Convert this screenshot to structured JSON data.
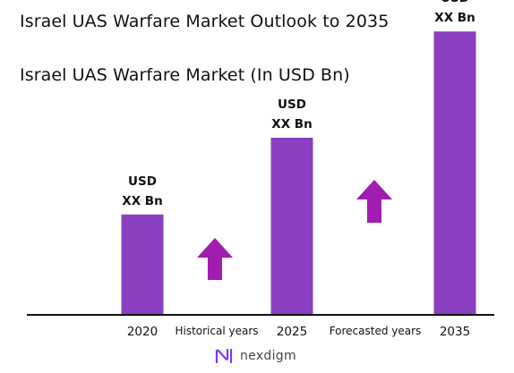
{
  "header": {
    "title": "Israel UAS Warfare Market Outlook to 2035",
    "subtitle": "Israel UAS Warfare Market (In USD Bn)"
  },
  "chart_data": {
    "type": "bar",
    "categories": [
      "2020",
      "2025",
      "2035"
    ],
    "values": [
      3.4,
      6.0,
      9.6
    ],
    "data_labels": [
      {
        "line1": "USD",
        "line2": "XX Bn"
      },
      {
        "line1": "USD",
        "line2": "XX Bn"
      },
      {
        "line1": "USD",
        "line2": "XX Bn"
      }
    ],
    "ylim": [
      0,
      10
    ],
    "grid": false,
    "legend": "none",
    "annotations": [
      "Historical years",
      "Forecasted years"
    ],
    "bar_color": "#8a3fc0",
    "arrow_color": "#a21caf"
  },
  "footer": {
    "logo_text": "nexdigm",
    "logo_color": "#7c3aed"
  }
}
